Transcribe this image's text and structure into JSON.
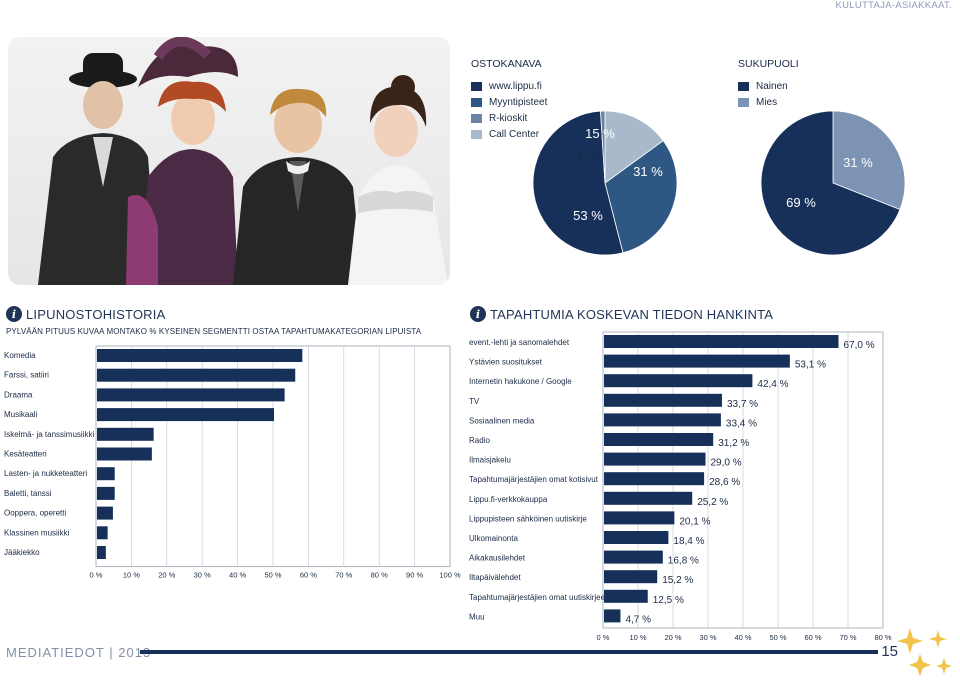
{
  "header": {
    "section": "KULUTTAJA-ASIAKKAAT."
  },
  "colors": {
    "navy": "#17305a",
    "blue": "#2f5784",
    "steel": "#6a84a6",
    "light": "#a9b9cc",
    "grid": "#c8ccd4"
  },
  "ostokanava": {
    "title": "OSTOKANAVA",
    "legend": [
      "www.lippu.fi",
      "Myyntipisteet",
      "R-kioskit",
      "Call Center"
    ],
    "slices": [
      {
        "label": "53 %",
        "value": 53
      },
      {
        "label": "31 %",
        "value": 31
      },
      {
        "label": "15 %",
        "value": 15
      },
      {
        "label": "1 %",
        "value": 1
      }
    ]
  },
  "sukupuoli": {
    "title": "SUKUPUOLI",
    "legend": [
      "Nainen",
      "Mies"
    ],
    "slices": [
      {
        "label": "69 %",
        "value": 69
      },
      {
        "label": "31 %",
        "value": 31
      }
    ]
  },
  "lipunostohistoria": {
    "title": "LIPUNOSTOHISTORIA",
    "subtitle": "PYLVÄÄN PITUUS KUVAA MONTAKO % KYSEINEN SEGMENTTI OSTAA TAPAHTUMAKATEGORIAN LIPUISTA",
    "categories": [
      "Komedia",
      "Farssi, satiiri",
      "Draama",
      "Musikaali",
      "Iskelmä- ja tanssimusiikki",
      "Kesäteatteri",
      "Lasten- ja nukketeatteri",
      "Baletti, tanssi",
      "Ooppera, operetti",
      "Klassinen musiikki",
      "Jääkiekko"
    ],
    "values": [
      58,
      56,
      53,
      50,
      16,
      15.5,
      5,
      5,
      4.5,
      3,
      2.5
    ],
    "xticks": [
      "0 %",
      "10 %",
      "20 %",
      "30 %",
      "40 %",
      "50 %",
      "60 %",
      "70 %",
      "80 %",
      "90 %",
      "100 %"
    ]
  },
  "tiedonhankinta": {
    "title": "TAPAHTUMIA KOSKEVAN TIEDON HANKINTA",
    "categories": [
      "event.-lehti ja sanomalehdet",
      "Ystävien suositukset",
      "Internetin hakukone / Google",
      "TV",
      "Sosiaalinen media",
      "Radio",
      "Ilmaisjakelu",
      "Tapahtumajärjestäjien omat kotisivut",
      "Lippu.fi-verkkokauppa",
      "Lippupisteen sähköinen uutiskirje",
      "Ulkomainonta",
      "Aikakausilehdet",
      "Iltapäivälehdet",
      "Tapahtumajärjestäjien omat uutiskirjeet",
      "Muu"
    ],
    "values": [
      67.0,
      53.1,
      42.4,
      33.7,
      33.4,
      31.2,
      29.0,
      28.6,
      25.2,
      20.1,
      18.4,
      16.8,
      15.2,
      12.5,
      4.7
    ],
    "value_labels": [
      "67,0 %",
      "53,1 %",
      "42,4 %",
      "33,7 %",
      "33,4 %",
      "31,2 %",
      "29,0 %",
      "28,6 %",
      "25,2 %",
      "20,1 %",
      "18,4 %",
      "16,8 %",
      "15,2 %",
      "12,5 %",
      "4,7 %"
    ],
    "xticks": [
      "0 %",
      "10 %",
      "20 %",
      "30 %",
      "40 %",
      "50 %",
      "60 %",
      "70 %",
      "80 %"
    ]
  },
  "footer": {
    "brand": "MEDIATIEDOT | 2013",
    "page": "15"
  },
  "chart_data": [
    {
      "type": "pie",
      "title": "OSTOKANAVA",
      "categories": [
        "www.lippu.fi",
        "Myyntipisteet",
        "R-kioskit",
        "Call Center"
      ],
      "values": [
        53,
        31,
        15,
        1
      ]
    },
    {
      "type": "pie",
      "title": "SUKUPUOLI",
      "categories": [
        "Nainen",
        "Mies"
      ],
      "values": [
        69,
        31
      ]
    },
    {
      "type": "bar",
      "title": "LIPUNOSTOHISTORIA",
      "categories": [
        "Komedia",
        "Farssi, satiiri",
        "Draama",
        "Musikaali",
        "Iskelmä- ja tanssimusiikki",
        "Kesäteatteri",
        "Lasten- ja nukketeatteri",
        "Baletti, tanssi",
        "Ooppera, operetti",
        "Klassinen musiikki",
        "Jääkiekko"
      ],
      "values": [
        58,
        56,
        53,
        50,
        16,
        15.5,
        5,
        5,
        4.5,
        3,
        2.5
      ],
      "xlim": [
        0,
        100
      ],
      "grid": true
    },
    {
      "type": "bar",
      "title": "TAPAHTUMIA KOSKEVAN TIEDON HANKINTA",
      "categories": [
        "event.-lehti ja sanomalehdet",
        "Ystävien suositukset",
        "Internetin hakukone / Google",
        "TV",
        "Sosiaalinen media",
        "Radio",
        "Ilmaisjakelu",
        "Tapahtumajärjestäjien omat kotisivut",
        "Lippu.fi-verkkokauppa",
        "Lippupisteen sähköinen uutiskirje",
        "Ulkomainonta",
        "Aikakausilehdet",
        "Iltapäivälehdet",
        "Tapahtumajärjestäjien omat uutiskirjeet",
        "Muu"
      ],
      "values": [
        67.0,
        53.1,
        42.4,
        33.7,
        33.4,
        31.2,
        29.0,
        28.6,
        25.2,
        20.1,
        18.4,
        16.8,
        15.2,
        12.5,
        4.7
      ],
      "xlim": [
        0,
        80
      ],
      "grid": true
    }
  ]
}
